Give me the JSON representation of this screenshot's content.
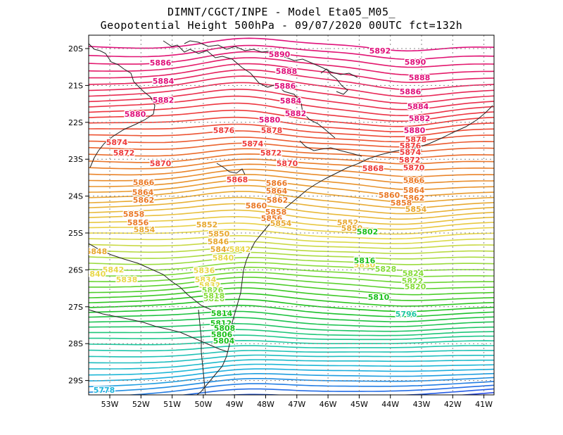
{
  "header": {
    "line1": "DIMNT/CGCT/INPE  -   Model Eta05_M05_",
    "line2": "Geopotential Height 500hPa -   09/07/2020 00UTC fct=132h"
  },
  "axes": {
    "lat_labels": [
      "20S",
      "21S",
      "22S",
      "23S",
      "24S",
      "25S",
      "26S",
      "27S",
      "28S",
      "29S"
    ],
    "lon_labels": [
      "53W",
      "52W",
      "51W",
      "50W",
      "49W",
      "48W",
      "47W",
      "46W",
      "45W",
      "44W",
      "43W",
      "42W",
      "41W"
    ]
  },
  "colors": {
    "magenta": "#e0107a",
    "red": "#ee3a3a",
    "orange": "#ea7a28",
    "amber": "#e8a830",
    "yellow": "#e8d84a",
    "lightgreen": "#86dc3a",
    "green": "#1cc01c",
    "teal": "#20c8a0",
    "cyan": "#1cb4dc",
    "blue": "#2850e8",
    "violet": "#9a18d8"
  },
  "contour_labels": [
    {
      "text": "5892",
      "color": "#e0107a"
    },
    {
      "text": "5890",
      "color": "#e0107a"
    },
    {
      "text": "5890",
      "color": "#e0107a"
    },
    {
      "text": "5888",
      "color": "#e0107a"
    },
    {
      "text": "5888",
      "color": "#e0107a"
    },
    {
      "text": "5886",
      "color": "#e0107a"
    },
    {
      "text": "5886",
      "color": "#e0107a"
    },
    {
      "text": "5886",
      "color": "#e0107a"
    },
    {
      "text": "5884",
      "color": "#e0107a"
    },
    {
      "text": "5884",
      "color": "#e0107a"
    },
    {
      "text": "5884",
      "color": "#e0107a"
    },
    {
      "text": "5882",
      "color": "#e0107a"
    },
    {
      "text": "5882",
      "color": "#e0107a"
    },
    {
      "text": "5882",
      "color": "#e0107a"
    },
    {
      "text": "5880",
      "color": "#e0107a"
    },
    {
      "text": "5880",
      "color": "#e0107a"
    },
    {
      "text": "5880",
      "color": "#e0107a"
    },
    {
      "text": "5878",
      "color": "#ee3a3a"
    },
    {
      "text": "5878",
      "color": "#ee3a3a"
    },
    {
      "text": "5876",
      "color": "#ee3a3a"
    },
    {
      "text": "5876",
      "color": "#ee3a3a"
    },
    {
      "text": "5874",
      "color": "#ee3a3a"
    },
    {
      "text": "5874",
      "color": "#ee3a3a"
    },
    {
      "text": "5874",
      "color": "#ee3a3a"
    },
    {
      "text": "5872",
      "color": "#ee3a3a"
    },
    {
      "text": "5872",
      "color": "#ee3a3a"
    },
    {
      "text": "5872",
      "color": "#ee3a3a"
    },
    {
      "text": "5870",
      "color": "#ee3a3a"
    },
    {
      "text": "5870",
      "color": "#ee3a3a"
    },
    {
      "text": "5870",
      "color": "#ee3a3a"
    },
    {
      "text": "5868",
      "color": "#ee3a3a"
    },
    {
      "text": "5868",
      "color": "#ee3a3a"
    },
    {
      "text": "5866",
      "color": "#ea7a28"
    },
    {
      "text": "5866",
      "color": "#ea7a28"
    },
    {
      "text": "5866",
      "color": "#ea7a28"
    },
    {
      "text": "5864",
      "color": "#ea7a28"
    },
    {
      "text": "5864",
      "color": "#ea7a28"
    },
    {
      "text": "5864",
      "color": "#ea7a28"
    },
    {
      "text": "5862",
      "color": "#ea7a28"
    },
    {
      "text": "5862",
      "color": "#ea7a28"
    },
    {
      "text": "5862",
      "color": "#ea7a28"
    },
    {
      "text": "5860",
      "color": "#ea7a28"
    },
    {
      "text": "5860",
      "color": "#ea7a28"
    },
    {
      "text": "5858",
      "color": "#ea7a28"
    },
    {
      "text": "5858",
      "color": "#ea7a28"
    },
    {
      "text": "5858",
      "color": "#ea7a28"
    },
    {
      "text": "5856",
      "color": "#ea7a28"
    },
    {
      "text": "5856",
      "color": "#ea7a28"
    },
    {
      "text": "5854",
      "color": "#e8a830"
    },
    {
      "text": "5854",
      "color": "#e8a830"
    },
    {
      "text": "5854",
      "color": "#e8a830"
    },
    {
      "text": "5852",
      "color": "#e8a830"
    },
    {
      "text": "5852",
      "color": "#e8a830"
    },
    {
      "text": "5850",
      "color": "#e8a830"
    },
    {
      "text": "5850",
      "color": "#e8a830"
    },
    {
      "text": "5848",
      "color": "#e8a830"
    },
    {
      "text": "5846",
      "color": "#e8a830"
    },
    {
      "text": "5844",
      "color": "#e8a830"
    },
    {
      "text": "5842",
      "color": "#e8d84a"
    },
    {
      "text": "5842",
      "color": "#e8d84a"
    },
    {
      "text": "5840",
      "color": "#e8d84a"
    },
    {
      "text": "5840",
      "color": "#e8d84a"
    },
    {
      "text": "5838",
      "color": "#e8d84a"
    },
    {
      "text": "5836",
      "color": "#e8d84a"
    },
    {
      "text": "5834",
      "color": "#e8d84a"
    },
    {
      "text": "5832",
      "color": "#e8d84a"
    },
    {
      "text": "5830",
      "color": "#e8d84a"
    },
    {
      "text": "5828",
      "color": "#86dc3a"
    },
    {
      "text": "5826",
      "color": "#86dc3a"
    },
    {
      "text": "5826",
      "color": "#86dc3a"
    },
    {
      "text": "5824",
      "color": "#86dc3a"
    },
    {
      "text": "5822",
      "color": "#86dc3a"
    },
    {
      "text": "5820",
      "color": "#86dc3a"
    },
    {
      "text": "5818",
      "color": "#86dc3a"
    },
    {
      "text": "5816",
      "color": "#1cc01c"
    },
    {
      "text": "5814",
      "color": "#1cc01c"
    },
    {
      "text": "5812",
      "color": "#1cc01c"
    },
    {
      "text": "5810",
      "color": "#1cc01c"
    },
    {
      "text": "5808",
      "color": "#1cc01c"
    },
    {
      "text": "5806",
      "color": "#1cc01c"
    },
    {
      "text": "5804",
      "color": "#1cc01c"
    },
    {
      "text": "5802",
      "color": "#1cc01c"
    },
    {
      "text": "5796",
      "color": "#20c8a0"
    },
    {
      "text": "5778",
      "color": "#1cb4dc"
    }
  ]
}
